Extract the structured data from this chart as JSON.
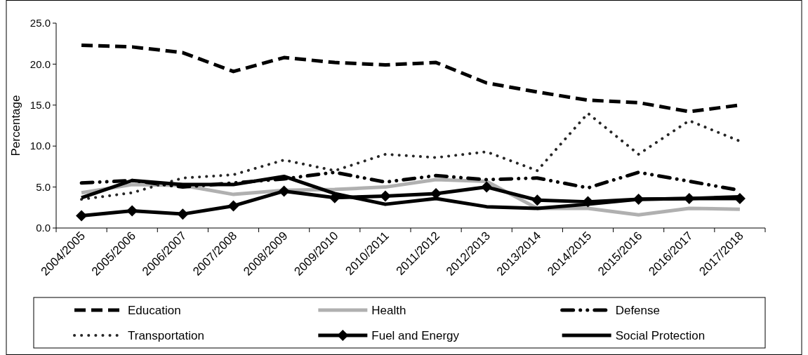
{
  "chart_data": {
    "type": "line",
    "ylabel": "Percentage",
    "categories": [
      "2004/2005",
      "2005/2006",
      "2006/2007",
      "2007/2008",
      "2008/2009",
      "2009/2010",
      "2010/2011",
      "2011/2012",
      "2012/2013",
      "2013/2014",
      "2014/2015",
      "2015/2016",
      "2016/2017",
      "2017/2018"
    ],
    "series": [
      {
        "name": "Education",
        "color": "#000000",
        "line_style": "dashed",
        "values": [
          22.3,
          22.1,
          21.4,
          19.1,
          20.8,
          20.2,
          19.9,
          20.2,
          17.7,
          16.6,
          15.6,
          15.3,
          14.2,
          15.0
        ]
      },
      {
        "name": "Health",
        "color": "#b0b0b0",
        "line_style": "solid",
        "values": [
          4.3,
          5.3,
          5.2,
          4.1,
          4.6,
          4.7,
          5.0,
          5.9,
          5.7,
          2.4,
          2.4,
          1.6,
          2.4,
          2.3
        ]
      },
      {
        "name": "Defense",
        "color": "#000000",
        "line_style": "dashdot",
        "values": [
          5.5,
          5.8,
          5.0,
          5.5,
          6.0,
          6.8,
          5.6,
          6.4,
          5.9,
          6.1,
          4.9,
          6.8,
          5.7,
          4.6
        ]
      },
      {
        "name": "Transportation",
        "color": "#262626",
        "line_style": "dotted",
        "values": [
          3.5,
          4.3,
          6.1,
          6.5,
          8.3,
          7.0,
          9.0,
          8.6,
          9.3,
          7.0,
          14.0,
          9.0,
          13.1,
          10.6
        ]
      },
      {
        "name": "Fuel and Energy",
        "color": "#000000",
        "line_style": "solid",
        "marker": "diamond",
        "values": [
          1.5,
          2.1,
          1.7,
          2.7,
          4.5,
          3.7,
          3.9,
          4.2,
          5.0,
          3.4,
          3.2,
          3.5,
          3.6,
          3.6
        ]
      },
      {
        "name": "Social Protection",
        "color": "#000000",
        "line_style": "solid",
        "values": [
          3.7,
          5.8,
          5.3,
          5.3,
          6.3,
          4.2,
          2.9,
          3.6,
          2.6,
          2.4,
          2.9,
          3.5,
          3.6,
          3.8
        ]
      }
    ],
    "ylim": [
      0,
      25
    ],
    "yticks": [
      {
        "value": 0,
        "label": "0.0"
      },
      {
        "value": 5,
        "label": "5.0"
      },
      {
        "value": 10,
        "label": "10.0"
      },
      {
        "value": 15,
        "label": "15.0"
      },
      {
        "value": 20,
        "label": "20.0"
      },
      {
        "value": 25,
        "label": "25.0"
      }
    ],
    "legend": "bottom"
  }
}
